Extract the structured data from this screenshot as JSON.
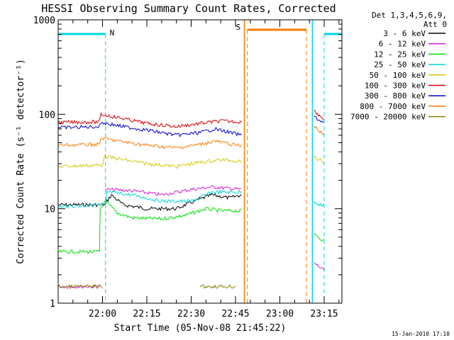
{
  "chart_data": {
    "type": "line",
    "title": "HESSI Observing Summary Count Rates, Corrected",
    "xlabel": "Start Time (05-Nov-08 21:45:22)",
    "ylabel": "Corrected Count Rate (s⁻¹ detector⁻¹)",
    "yscale": "log",
    "ylim": [
      1,
      1000
    ],
    "xlim_minutes": [
      0,
      96
    ],
    "x_tick_labels": [
      "22:00",
      "22:15",
      "22:30",
      "22:45",
      "23:00",
      "23:15"
    ],
    "x_tick_minutes": [
      15,
      30,
      45,
      60,
      75,
      90
    ],
    "y_tick_labels": [
      "1",
      "10",
      "100",
      "1000"
    ],
    "y_tick_values": [
      1,
      10,
      100,
      1000
    ],
    "legend_title": [
      "Det 1,3,4,5,6,9,",
      "Att 0"
    ],
    "legend_position": "right",
    "data_gap_minutes": [
      63,
      86
    ],
    "series": [
      {
        "name": "3 - 6 keV",
        "color": "#000000",
        "points": [
          [
            0,
            11
          ],
          [
            16,
            11
          ],
          [
            16.5,
            12
          ],
          [
            18,
            14
          ],
          [
            22,
            11
          ],
          [
            30,
            10
          ],
          [
            40,
            10
          ],
          [
            46,
            12
          ],
          [
            52,
            14
          ],
          [
            58,
            13
          ],
          [
            62,
            14
          ],
          [
            62.5,
            null
          ],
          [
            86.5,
            null
          ]
        ]
      },
      {
        "name": "6 - 12 keV",
        "color": "#d61fd6",
        "points": [
          [
            0,
            1.5
          ],
          [
            14,
            1.5
          ],
          [
            14.5,
            null
          ],
          [
            16,
            16
          ],
          [
            25,
            15.5
          ],
          [
            35,
            14
          ],
          [
            45,
            16
          ],
          [
            52,
            17
          ],
          [
            62,
            16
          ],
          [
            62.5,
            null
          ],
          [
            86.5,
            2.7
          ],
          [
            90,
            2.2
          ],
          [
            90.5,
            null
          ]
        ]
      },
      {
        "name": "12 - 25 keV",
        "color": "#00e000",
        "points": [
          [
            0,
            3.5
          ],
          [
            14,
            3.5
          ],
          [
            14.2,
            10
          ],
          [
            16,
            12
          ],
          [
            20,
            9
          ],
          [
            25,
            8
          ],
          [
            35,
            7.8
          ],
          [
            43,
            8.5
          ],
          [
            50,
            10
          ],
          [
            55,
            9.5
          ],
          [
            62,
            9.5
          ],
          [
            62.5,
            null
          ],
          [
            86.5,
            5.5
          ],
          [
            90,
            4.5
          ],
          [
            90.5,
            null
          ]
        ]
      },
      {
        "name": "25 - 50 keV",
        "color": "#00d8e8",
        "points": [
          [
            0,
            10.5
          ],
          [
            16,
            11
          ],
          [
            16.5,
            15
          ],
          [
            25,
            14
          ],
          [
            35,
            12
          ],
          [
            45,
            12
          ],
          [
            52,
            15
          ],
          [
            62,
            15
          ],
          [
            62.5,
            null
          ],
          [
            86.5,
            12
          ],
          [
            90,
            10.5
          ],
          [
            90.5,
            null
          ]
        ]
      },
      {
        "name": "50 - 100 keV",
        "color": "#d4c800",
        "points": [
          [
            0,
            28
          ],
          [
            15,
            29
          ],
          [
            15.5,
            36
          ],
          [
            22,
            33
          ],
          [
            30,
            30
          ],
          [
            40,
            28
          ],
          [
            48,
            31
          ],
          [
            55,
            33
          ],
          [
            62,
            32
          ],
          [
            62.5,
            null
          ],
          [
            86.5,
            35
          ],
          [
            90,
            31
          ],
          [
            90.5,
            null
          ]
        ]
      },
      {
        "name": "100 - 300 keV",
        "color": "#dd0000",
        "points": [
          [
            0,
            82
          ],
          [
            14,
            83
          ],
          [
            14.5,
            100
          ],
          [
            22,
            90
          ],
          [
            30,
            80
          ],
          [
            40,
            74
          ],
          [
            48,
            80
          ],
          [
            55,
            85
          ],
          [
            62,
            83
          ],
          [
            62.5,
            null
          ],
          [
            86.5,
            110
          ],
          [
            90,
            88
          ],
          [
            90.5,
            null
          ]
        ]
      },
      {
        "name": "300 - 800 keV",
        "color": "#0000dd",
        "points": [
          [
            0,
            72
          ],
          [
            14,
            74
          ],
          [
            14.5,
            82
          ],
          [
            22,
            74
          ],
          [
            30,
            68
          ],
          [
            40,
            60
          ],
          [
            48,
            64
          ],
          [
            53,
            70
          ],
          [
            62,
            60
          ],
          [
            62.5,
            null
          ],
          [
            86.5,
            95
          ],
          [
            90,
            80
          ],
          [
            90.5,
            null
          ]
        ]
      },
      {
        "name": "800 - 7000 keV",
        "color": "#ff7a00",
        "points": [
          [
            0,
            47
          ],
          [
            14,
            48
          ],
          [
            14.5,
            56
          ],
          [
            22,
            51
          ],
          [
            30,
            47
          ],
          [
            40,
            44
          ],
          [
            48,
            48
          ],
          [
            53,
            52
          ],
          [
            62,
            46
          ],
          [
            62.5,
            null
          ],
          [
            86.5,
            75
          ],
          [
            90,
            60
          ],
          [
            90.5,
            null
          ]
        ]
      },
      {
        "name": "7000 - 20000 keV",
        "color": "#808000",
        "points": [
          [
            0,
            1.5
          ],
          [
            15,
            1.5
          ],
          [
            15.5,
            null
          ],
          [
            48,
            1.5
          ],
          [
            60,
            1.5
          ],
          [
            60.5,
            null
          ]
        ]
      }
    ],
    "flags": [
      {
        "label": "N",
        "color": "#00d8e8",
        "segments": [
          [
            0,
            16
          ],
          [
            90,
            96
          ]
        ]
      },
      {
        "label": "S",
        "color": "#ff7a00",
        "segments": [
          [
            64,
            84
          ]
        ]
      }
    ],
    "footer": "15-Jan-2010 17:10"
  }
}
